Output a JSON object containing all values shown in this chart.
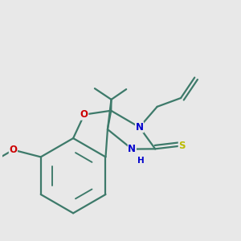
{
  "bg": "#e8e8e8",
  "bc": "#3d7a6a",
  "Oc": "#cc0000",
  "Nc": "#0000cc",
  "Sc": "#bbbb00",
  "lw": 1.6,
  "fs": 8.5,
  "fig_size": [
    3.0,
    3.0
  ],
  "dpi": 100,
  "xlim": [
    -1.5,
    4.5
  ],
  "ylim": [
    -2.8,
    3.2
  ]
}
